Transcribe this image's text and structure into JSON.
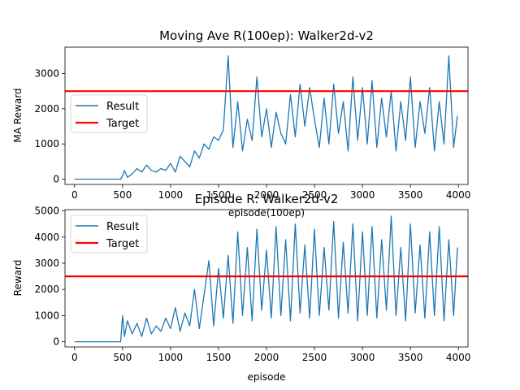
{
  "chart_data": [
    {
      "type": "line",
      "title": "Moving Ave R(100ep): Walker2d-v2",
      "xlabel": "episode(100ep)",
      "ylabel": "MA Reward",
      "xlim": [
        -100,
        4100
      ],
      "ylim": [
        -150,
        3750
      ],
      "xticks": [
        0,
        500,
        1000,
        1500,
        2000,
        2500,
        3000,
        3500,
        4000
      ],
      "yticks": [
        0,
        1000,
        2000,
        3000
      ],
      "grid": false,
      "legend_position": "center-left",
      "series": [
        {
          "name": "Result",
          "color": "#1f77b4",
          "x": [
            0,
            100,
            200,
            300,
            400,
            480,
            500,
            520,
            550,
            600,
            650,
            700,
            750,
            800,
            850,
            900,
            950,
            1000,
            1050,
            1100,
            1150,
            1200,
            1250,
            1300,
            1350,
            1400,
            1450,
            1500,
            1550,
            1600,
            1650,
            1700,
            1750,
            1800,
            1850,
            1900,
            1950,
            2000,
            2050,
            2100,
            2150,
            2200,
            2250,
            2300,
            2350,
            2400,
            2450,
            2500,
            2550,
            2600,
            2650,
            2700,
            2750,
            2800,
            2850,
            2900,
            2950,
            3000,
            3050,
            3100,
            3150,
            3200,
            3250,
            3300,
            3350,
            3400,
            3450,
            3500,
            3550,
            3600,
            3650,
            3700,
            3750,
            3800,
            3850,
            3900,
            3950,
            3990
          ],
          "y": [
            0,
            0,
            0,
            0,
            0,
            0,
            100,
            250,
            50,
            150,
            300,
            200,
            400,
            250,
            200,
            300,
            250,
            450,
            200,
            650,
            500,
            350,
            800,
            600,
            1000,
            850,
            1200,
            1100,
            1400,
            3500,
            900,
            2200,
            800,
            1700,
            1100,
            2900,
            1200,
            2000,
            900,
            1900,
            1300,
            1000,
            2400,
            1200,
            2700,
            1500,
            2600,
            1700,
            900,
            2300,
            1000,
            2700,
            1300,
            2200,
            800,
            2900,
            1100,
            2600,
            1000,
            2800,
            900,
            2300,
            1200,
            2500,
            800,
            2200,
            1100,
            2900,
            900,
            2200,
            1300,
            2600,
            800,
            2200,
            1000,
            3500,
            900,
            1800
          ]
        },
        {
          "name": "Target",
          "color": "#ff0000",
          "x": [
            -100,
            4100
          ],
          "y": [
            2500,
            2500
          ]
        }
      ]
    },
    {
      "type": "line",
      "title": "Episode R: Walker2d-v2",
      "xlabel": "episode",
      "ylabel": "Reward",
      "xlim": [
        -100,
        4100
      ],
      "ylim": [
        -200,
        5050
      ],
      "xticks": [
        0,
        500,
        1000,
        1500,
        2000,
        2500,
        3000,
        3500,
        4000
      ],
      "yticks": [
        0,
        1000,
        2000,
        3000,
        4000,
        5000
      ],
      "grid": false,
      "legend_position": "top-left",
      "series": [
        {
          "name": "Result",
          "color": "#1f77b4",
          "x": [
            0,
            100,
            200,
            300,
            400,
            480,
            500,
            520,
            550,
            600,
            650,
            700,
            750,
            800,
            850,
            900,
            950,
            1000,
            1050,
            1100,
            1150,
            1200,
            1250,
            1300,
            1350,
            1400,
            1450,
            1500,
            1550,
            1600,
            1650,
            1700,
            1750,
            1800,
            1850,
            1900,
            1950,
            2000,
            2050,
            2100,
            2150,
            2200,
            2250,
            2300,
            2350,
            2400,
            2450,
            2500,
            2550,
            2600,
            2650,
            2700,
            2750,
            2800,
            2850,
            2900,
            2950,
            3000,
            3050,
            3100,
            3150,
            3200,
            3250,
            3300,
            3350,
            3400,
            3450,
            3500,
            3550,
            3600,
            3650,
            3700,
            3750,
            3800,
            3850,
            3900,
            3950,
            3990
          ],
          "y": [
            0,
            0,
            0,
            0,
            0,
            0,
            1000,
            200,
            800,
            300,
            700,
            200,
            900,
            300,
            600,
            400,
            900,
            500,
            1300,
            400,
            1100,
            600,
            2000,
            500,
            1800,
            3100,
            600,
            2800,
            900,
            3300,
            700,
            4200,
            1000,
            3600,
            800,
            4300,
            1200,
            3500,
            900,
            4400,
            1000,
            3900,
            800,
            4500,
            1100,
            3700,
            900,
            4300,
            1000,
            3600,
            1200,
            4600,
            900,
            3800,
            1100,
            4500,
            800,
            4200,
            1000,
            4400,
            900,
            3900,
            1200,
            4800,
            1000,
            3600,
            800,
            4500,
            1100,
            3700,
            900,
            4200,
            1000,
            4400,
            800,
            3900,
            1000,
            3600
          ]
        },
        {
          "name": "Target",
          "color": "#ff0000",
          "x": [
            -100,
            4100
          ],
          "y": [
            2500,
            2500
          ]
        }
      ]
    }
  ]
}
